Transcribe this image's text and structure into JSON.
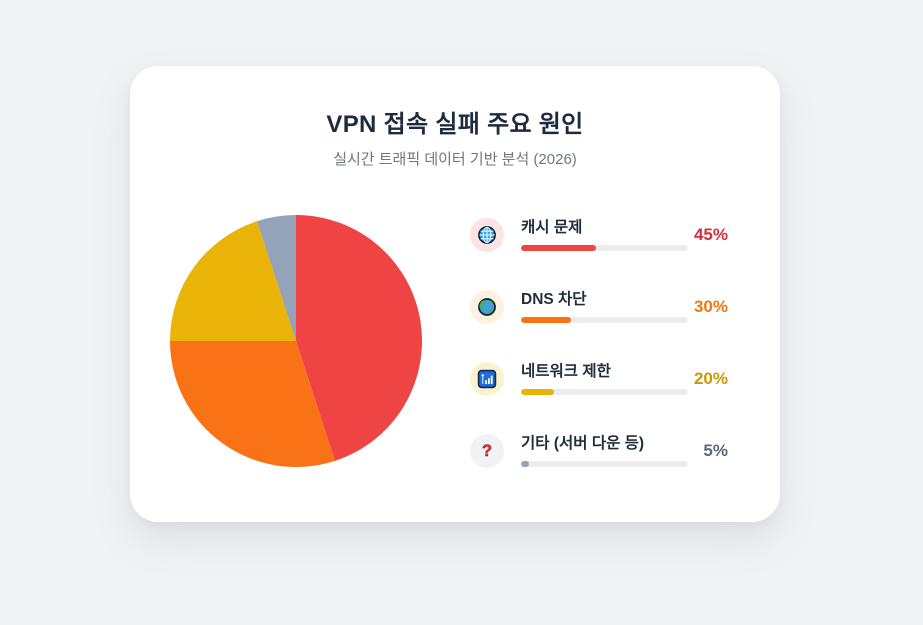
{
  "card": {
    "title": "VPN 접속 실패 주요 원인",
    "subtitle": "실시간 트래픽 데이터 기반 분석 (2026)"
  },
  "colors": {
    "page_bg": "#f1f2f4",
    "card_bg": "#ffffff",
    "title_text": "#1e2b3c",
    "subtitle_text": "#6f7680",
    "label_text": "#1f2d3d",
    "bar_track": "#ededf0"
  },
  "chart_data": {
    "type": "pie",
    "title": "VPN 접속 실패 주요 원인",
    "subtitle": "실시간 트래픽 데이터 기반 분석 (2026)",
    "start_angle": "12-oclock",
    "direction": "clockwise",
    "legend_position": "right",
    "categories": [
      "캐시 문제",
      "DNS 차단",
      "네트워크 제한",
      "기타 (서버 다운 등)"
    ],
    "values": [
      45,
      30,
      20,
      5
    ],
    "slices": [
      {
        "label": "캐시 문제",
        "value": 45,
        "pct_label": "45%",
        "color": "#ef4444",
        "pct_color": "#d92d3a",
        "icon": "globe-grid",
        "icon_bg": "#fce4e4"
      },
      {
        "label": "DNS 차단",
        "value": 30,
        "pct_label": "30%",
        "color": "#f97316",
        "pct_color": "#f2760d",
        "icon": "earth-globe",
        "icon_bg": "#fdf1e0"
      },
      {
        "label": "네트워크 제한",
        "value": 20,
        "pct_label": "20%",
        "color": "#eab308",
        "pct_color": "#cc9706",
        "icon": "signal-bars",
        "icon_bg": "#faf3cf"
      },
      {
        "label": "기타 (서버 다운 등)",
        "value": 5,
        "pct_label": "5%",
        "color": "#94a3b8",
        "pct_color": "#5a6878",
        "icon": "question-mark",
        "icon_bg": "#f1f2f4"
      }
    ]
  }
}
